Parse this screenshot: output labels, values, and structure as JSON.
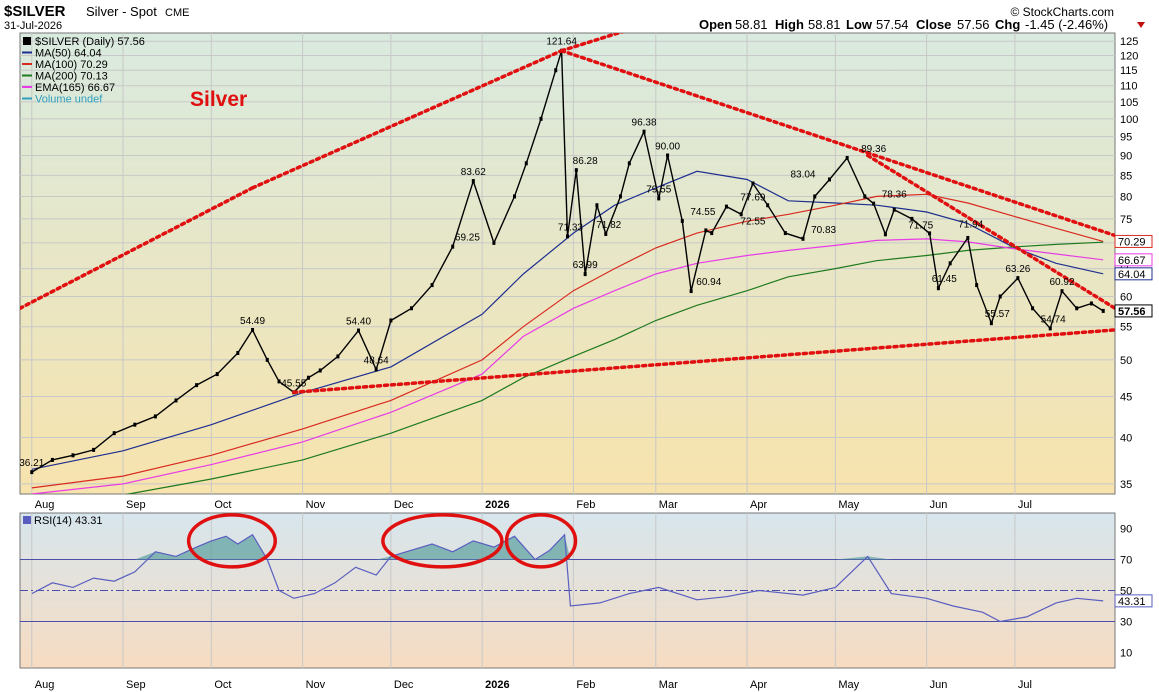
{
  "header": {
    "symbol": "$SILVER",
    "name": "Silver - Spot",
    "exchange": "CME",
    "date": "31-Jul-2026",
    "quote": {
      "open_label": "Open",
      "open": "58.81",
      "high_label": "High",
      "high": "58.81",
      "low_label": "Low",
      "low": "57.54",
      "close_label": "Close",
      "close": "57.56",
      "chg_label": "Chg",
      "chg": "-1.45 (-2.46%)"
    },
    "watermark": "© StockCharts.com"
  },
  "colors": {
    "price_bg_top": "#d9eadf",
    "price_bg_bottom": "#f7e3ad",
    "rsi_bg_top": "#d7e6ee",
    "rsi_bg_bottom": "#f7dcc1",
    "ma50": "#1f2f8f",
    "ma100": "#d92a1f",
    "ma200": "#1f7a1f",
    "ema165": "#e83ce6",
    "price": "#000000",
    "rsi_line": "#5a5ec0",
    "rsi_fill": "#5a9fa0",
    "trend": "#e01010",
    "annotation": "#e01010"
  },
  "annotation_text": "Silver",
  "chart_data": [
    {
      "type": "line",
      "title": "$SILVER (Daily) 57.56",
      "y_scale": "log",
      "ylim": [
        34,
        128
      ],
      "y_ticks": [
        35,
        40,
        45,
        50,
        55,
        60,
        65,
        70,
        75,
        80,
        85,
        90,
        95,
        100,
        105,
        110,
        115,
        120,
        125
      ],
      "x_labels": [
        "Aug",
        "Sep",
        "Oct",
        "Nov",
        "Dec",
        "2026",
        "Feb",
        "Mar",
        "Apr",
        "May",
        "Jun",
        "Jul"
      ],
      "grid": true,
      "legend_position": "top-left",
      "legend": [
        {
          "label": "$SILVER (Daily) 57.56",
          "color_key": "price"
        },
        {
          "label": "MA(50) 64.04",
          "color_key": "ma50"
        },
        {
          "label": "MA(100) 70.29",
          "color_key": "ma100"
        },
        {
          "label": "MA(200) 70.13",
          "color_key": "ma200"
        },
        {
          "label": "EMA(165) 66.67",
          "color_key": "ema165"
        },
        {
          "label": "Volume undef",
          "color_key": "volume"
        }
      ],
      "price_series": {
        "name": "$SILVER",
        "x": [
          "2025-08-01",
          "2025-08-08",
          "2025-08-15",
          "2025-08-22",
          "2025-08-29",
          "2025-09-05",
          "2025-09-12",
          "2025-09-19",
          "2025-09-26",
          "2025-10-03",
          "2025-10-10",
          "2025-10-15",
          "2025-10-20",
          "2025-10-24",
          "2025-10-29",
          "2025-11-03",
          "2025-11-07",
          "2025-11-13",
          "2025-11-20",
          "2025-11-26",
          "2025-12-01",
          "2025-12-08",
          "2025-12-15",
          "2025-12-22",
          "2025-12-29",
          "2026-01-05",
          "2026-01-12",
          "2026-01-16",
          "2026-01-21",
          "2026-01-26",
          "2026-01-28",
          "2026-01-30",
          "2026-02-02",
          "2026-02-05",
          "2026-02-09",
          "2026-02-12",
          "2026-02-17",
          "2026-02-20",
          "2026-02-25",
          "2026-03-02",
          "2026-03-05",
          "2026-03-10",
          "2026-03-13",
          "2026-03-18",
          "2026-03-20",
          "2026-03-25",
          "2026-03-30",
          "2026-04-03",
          "2026-04-08",
          "2026-04-14",
          "2026-04-20",
          "2026-04-24",
          "2026-04-29",
          "2026-05-05",
          "2026-05-11",
          "2026-05-14",
          "2026-05-18",
          "2026-05-21",
          "2026-05-27",
          "2026-06-02",
          "2026-06-05",
          "2026-06-09",
          "2026-06-15",
          "2026-06-18",
          "2026-06-23",
          "2026-06-26",
          "2026-07-02",
          "2026-07-07",
          "2026-07-13",
          "2026-07-17",
          "2026-07-22",
          "2026-07-27",
          "2026-07-31"
        ],
        "close": [
          36.21,
          37.5,
          38.0,
          38.6,
          40.5,
          41.5,
          42.5,
          44.5,
          46.5,
          48.0,
          51.0,
          54.49,
          50.0,
          47.0,
          45.55,
          47.5,
          48.5,
          50.5,
          54.4,
          48.64,
          56.0,
          58.0,
          62.0,
          69.25,
          83.62,
          70.0,
          80.0,
          88.0,
          100.0,
          115.0,
          121.64,
          71.33,
          86.28,
          63.99,
          78.0,
          71.82,
          80.0,
          88.0,
          96.38,
          79.55,
          90.0,
          74.55,
          60.94,
          72.55,
          72.0,
          77.69,
          76.0,
          83.04,
          78.0,
          72.0,
          70.83,
          80.0,
          84.0,
          89.36,
          80.0,
          78.36,
          71.75,
          77.0,
          75.0,
          71.94,
          61.45,
          66.0,
          71.0,
          62.0,
          55.57,
          60.0,
          63.26,
          58.0,
          54.74,
          60.92,
          58.0,
          58.81,
          57.56
        ]
      },
      "moving_averages": [
        {
          "name": "MA(50)",
          "color_key": "ma50",
          "last": 64.04,
          "x": [
            "2025-08-01",
            "2025-09-01",
            "2025-10-01",
            "2025-11-01",
            "2025-12-01",
            "2026-01-01",
            "2026-01-15",
            "2026-02-01",
            "2026-02-15",
            "2026-03-01",
            "2026-03-15",
            "2026-04-01",
            "2026-04-15",
            "2026-05-01",
            "2026-05-15",
            "2026-06-01",
            "2026-06-15",
            "2026-07-01",
            "2026-07-15",
            "2026-07-31"
          ],
          "values": [
            36.5,
            38.5,
            41.5,
            45.5,
            49.0,
            57.0,
            64.0,
            72.0,
            78.0,
            82.0,
            86.0,
            84.0,
            79.0,
            78.5,
            78.0,
            76.5,
            74.0,
            69.0,
            66.0,
            64.04
          ]
        },
        {
          "name": "MA(100)",
          "color_key": "ma100",
          "last": 70.29,
          "x": [
            "2025-08-01",
            "2025-09-01",
            "2025-10-01",
            "2025-11-01",
            "2025-12-01",
            "2026-01-01",
            "2026-01-15",
            "2026-02-01",
            "2026-02-15",
            "2026-03-01",
            "2026-03-15",
            "2026-04-01",
            "2026-04-15",
            "2026-05-01",
            "2026-05-15",
            "2026-06-01",
            "2026-06-15",
            "2026-07-01",
            "2026-07-15",
            "2026-07-31"
          ],
          "values": [
            34.6,
            35.8,
            38.0,
            41.0,
            44.5,
            50.0,
            55.0,
            61.0,
            65.0,
            69.0,
            72.0,
            74.5,
            76.0,
            78.0,
            80.0,
            80.5,
            78.5,
            75.5,
            73.0,
            70.29
          ]
        },
        {
          "name": "MA(200)",
          "color_key": "ma200",
          "last": 70.13,
          "x": [
            "2025-08-01",
            "2025-09-01",
            "2025-10-01",
            "2025-11-01",
            "2025-12-01",
            "2026-01-01",
            "2026-01-15",
            "2026-02-01",
            "2026-02-15",
            "2026-03-01",
            "2026-03-15",
            "2026-04-01",
            "2026-04-15",
            "2026-05-01",
            "2026-05-15",
            "2026-06-01",
            "2026-06-15",
            "2026-07-01",
            "2026-07-15",
            "2026-07-31"
          ],
          "values": [
            33.0,
            33.9,
            35.5,
            37.5,
            40.5,
            44.5,
            47.5,
            50.5,
            53.0,
            56.0,
            58.5,
            61.0,
            63.5,
            65.0,
            66.5,
            67.5,
            68.5,
            69.2,
            69.7,
            70.13
          ]
        },
        {
          "name": "EMA(165)",
          "color_key": "ema165",
          "last": 66.67,
          "x": [
            "2025-08-01",
            "2025-09-01",
            "2025-10-01",
            "2025-11-01",
            "2025-12-01",
            "2026-01-01",
            "2026-01-15",
            "2026-02-01",
            "2026-02-15",
            "2026-03-01",
            "2026-03-15",
            "2026-04-01",
            "2026-04-15",
            "2026-05-01",
            "2026-05-15",
            "2026-06-01",
            "2026-06-15",
            "2026-07-01",
            "2026-07-15",
            "2026-07-31"
          ],
          "values": [
            34.0,
            35.0,
            37.0,
            39.5,
            43.0,
            48.0,
            53.5,
            58.0,
            61.0,
            64.0,
            66.0,
            67.5,
            68.5,
            69.5,
            70.5,
            70.8,
            70.2,
            68.8,
            67.8,
            66.67
          ]
        }
      ],
      "right_labels": [
        "70.29",
        "66.67",
        "64.04",
        "57.56"
      ],
      "annotations": [
        {
          "text": "121.64",
          "x": "2026-01-28",
          "y": 121.64
        },
        {
          "text": "96.38",
          "x": "2026-02-25",
          "y": 96.38
        },
        {
          "text": "90.00",
          "x": "2026-03-05",
          "y": 90.0
        },
        {
          "text": "89.36",
          "x": "2026-05-14",
          "y": 89.36
        },
        {
          "text": "86.28",
          "x": "2026-02-05",
          "y": 86.28
        },
        {
          "text": "83.62",
          "x": "2025-12-29",
          "y": 83.62
        },
        {
          "text": "83.04",
          "x": "2026-04-20",
          "y": 83.04
        },
        {
          "text": "79.55",
          "x": "2026-03-02",
          "y": 79.55
        },
        {
          "text": "78.36",
          "x": "2026-05-21",
          "y": 78.36
        },
        {
          "text": "77.69",
          "x": "2026-04-03",
          "y": 77.69
        },
        {
          "text": "74.55",
          "x": "2026-03-17",
          "y": 74.55
        },
        {
          "text": "72.55",
          "x": "2026-04-03",
          "y": 72.55
        },
        {
          "text": "71.94",
          "x": "2026-06-16",
          "y": 71.94
        },
        {
          "text": "71.82",
          "x": "2026-02-13",
          "y": 71.82
        },
        {
          "text": "71.75",
          "x": "2026-05-30",
          "y": 71.75
        },
        {
          "text": "71.33",
          "x": "2026-01-31",
          "y": 71.33
        },
        {
          "text": "70.83",
          "x": "2026-04-27",
          "y": 70.83
        },
        {
          "text": "69.25",
          "x": "2025-12-27",
          "y": 69.25
        },
        {
          "text": "63.99",
          "x": "2026-02-05",
          "y": 63.99
        },
        {
          "text": "63.26",
          "x": "2026-07-02",
          "y": 63.26
        },
        {
          "text": "61.45",
          "x": "2026-06-07",
          "y": 61.45
        },
        {
          "text": "60.94",
          "x": "2026-03-19",
          "y": 60.94
        },
        {
          "text": "60.92",
          "x": "2026-07-17",
          "y": 60.92
        },
        {
          "text": "55.57",
          "x": "2026-06-25",
          "y": 55.57
        },
        {
          "text": "54.74",
          "x": "2026-07-14",
          "y": 54.74
        },
        {
          "text": "54.49",
          "x": "2025-10-15",
          "y": 54.49
        },
        {
          "text": "54.40",
          "x": "2025-11-20",
          "y": 54.4
        },
        {
          "text": "48.64",
          "x": "2025-11-26",
          "y": 48.64
        },
        {
          "text": "45.55",
          "x": "2025-10-29",
          "y": 45.55
        },
        {
          "text": "36.21",
          "x": "2025-08-01",
          "y": 36.21
        }
      ],
      "trendlines": [
        {
          "from": {
            "x": "2025-07-28",
            "y": 58.0
          },
          "to": {
            "x": "2025-10-15",
            "y": 82.0
          }
        },
        {
          "from": {
            "x": "2025-10-15",
            "y": 82.0
          },
          "to": {
            "x": "2026-01-28",
            "y": 121.64
          }
        },
        {
          "from": {
            "x": "2026-01-28",
            "y": 121.64
          },
          "to": {
            "x": "2026-02-25",
            "y": 131.0
          }
        },
        {
          "from": {
            "x": "2026-01-28",
            "y": 121.64
          },
          "to": {
            "x": "2026-08-04",
            "y": 71.5
          }
        },
        {
          "from": {
            "x": "2026-05-12",
            "y": 90.0
          },
          "to": {
            "x": "2026-08-04",
            "y": 58.0
          }
        },
        {
          "from": {
            "x": "2025-10-29",
            "y": 45.55
          },
          "to": {
            "x": "2026-08-04",
            "y": 54.5
          }
        }
      ]
    },
    {
      "type": "line",
      "title": "RSI(14) 43.31",
      "ylim": [
        0,
        100
      ],
      "y_ticks": [
        10,
        30,
        50,
        70,
        90
      ],
      "ref_lines": [
        30,
        50,
        70
      ],
      "last": "43.31",
      "series": [
        {
          "name": "RSI(14)",
          "x": [
            "2025-08-01",
            "2025-08-08",
            "2025-08-15",
            "2025-08-22",
            "2025-08-29",
            "2025-09-05",
            "2025-09-12",
            "2025-09-19",
            "2025-09-26",
            "2025-10-01",
            "2025-10-06",
            "2025-10-10",
            "2025-10-15",
            "2025-10-20",
            "2025-10-24",
            "2025-10-29",
            "2025-11-05",
            "2025-11-12",
            "2025-11-19",
            "2025-11-26",
            "2025-12-01",
            "2025-12-08",
            "2025-12-15",
            "2025-12-22",
            "2025-12-29",
            "2026-01-05",
            "2026-01-12",
            "2026-01-19",
            "2026-01-24",
            "2026-01-29",
            "2026-01-31",
            "2026-02-10",
            "2026-02-20",
            "2026-03-02",
            "2026-03-15",
            "2026-03-25",
            "2026-04-05",
            "2026-04-20",
            "2026-05-01",
            "2026-05-12",
            "2026-05-20",
            "2026-06-01",
            "2026-06-10",
            "2026-06-20",
            "2026-06-26",
            "2026-07-05",
            "2026-07-15",
            "2026-07-22",
            "2026-07-31"
          ],
          "values": [
            48,
            55,
            52,
            58,
            56,
            62,
            75,
            72,
            78,
            82,
            85,
            80,
            86,
            70,
            50,
            45,
            48,
            55,
            65,
            60,
            72,
            76,
            80,
            75,
            82,
            78,
            85,
            70,
            76,
            86,
            40,
            42,
            48,
            52,
            44,
            46,
            50,
            47,
            52,
            72,
            48,
            45,
            40,
            36,
            30,
            33,
            42,
            45,
            43.31
          ]
        }
      ],
      "highlighted_zones": [
        {
          "from": "2025-09-26",
          "to": "2025-10-20"
        },
        {
          "from": "2025-12-01",
          "to": "2026-01-05"
        },
        {
          "from": "2026-01-12",
          "to": "2026-01-30"
        }
      ]
    }
  ]
}
